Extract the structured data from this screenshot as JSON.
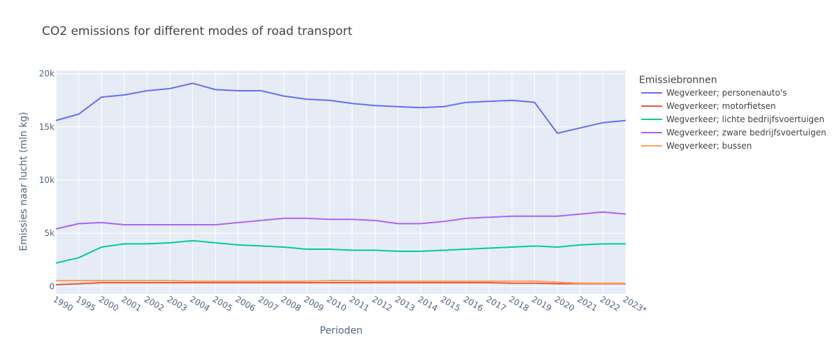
{
  "chart_data": {
    "type": "line",
    "title": "CO2 emissions for different modes of road transport",
    "xlabel": "Perioden",
    "ylabel": "Emissies naar lucht (mln kg)",
    "ylim": [
      -700,
      20300
    ],
    "yticks": [
      0,
      5000,
      10000,
      15000,
      20000
    ],
    "ytick_labels": [
      "0",
      "5k",
      "10k",
      "15k",
      "20k"
    ],
    "grid": true,
    "legend_title": "Emissiebronnen",
    "legend_position": "right",
    "categories": [
      "1990",
      "1995",
      "2000",
      "2001",
      "2002",
      "2003",
      "2004",
      "2005",
      "2006",
      "2007",
      "2008",
      "2009",
      "2010",
      "2011",
      "2012",
      "2013",
      "2014",
      "2015",
      "2016",
      "2017",
      "2018",
      "2019",
      "2020",
      "2021",
      "2022",
      "2023*"
    ],
    "series": [
      {
        "name": "Wegverkeer; personenauto's",
        "color": "#636efa",
        "values": [
          15600,
          16200,
          17800,
          18000,
          18400,
          18600,
          19100,
          18500,
          18400,
          18400,
          17900,
          17600,
          17500,
          17200,
          17000,
          16900,
          16800,
          16900,
          17300,
          17400,
          17500,
          17300,
          14400,
          14900,
          15400,
          15600
        ]
      },
      {
        "name": "Wegverkeer; motorfietsen",
        "color": "#ef553b",
        "values": [
          150,
          250,
          350,
          350,
          350,
          350,
          350,
          350,
          350,
          350,
          350,
          350,
          350,
          350,
          350,
          350,
          350,
          350,
          350,
          350,
          300,
          300,
          250,
          250,
          250,
          250
        ]
      },
      {
        "name": "Wegverkeer; lichte bedrijfsvoertuigen",
        "color": "#00cc96",
        "values": [
          2200,
          2700,
          3700,
          4000,
          4000,
          4100,
          4300,
          4100,
          3900,
          3800,
          3700,
          3500,
          3500,
          3400,
          3400,
          3300,
          3300,
          3400,
          3500,
          3600,
          3700,
          3800,
          3700,
          3900,
          4000,
          4000
        ]
      },
      {
        "name": "Wegverkeer; zware bedrijfsvoertuigen",
        "color": "#ab63fa",
        "values": [
          5400,
          5900,
          6000,
          5800,
          5800,
          5800,
          5800,
          5800,
          6000,
          6200,
          6400,
          6400,
          6300,
          6300,
          6200,
          5900,
          5900,
          6100,
          6400,
          6500,
          6600,
          6600,
          6600,
          6800,
          7000,
          6800
        ]
      },
      {
        "name": "Wegverkeer; bussen",
        "color": "#ffa15a",
        "values": [
          550,
          550,
          550,
          550,
          550,
          550,
          500,
          500,
          500,
          500,
          500,
          500,
          550,
          550,
          500,
          500,
          500,
          500,
          500,
          500,
          500,
          500,
          400,
          300,
          300,
          300
        ]
      }
    ]
  }
}
